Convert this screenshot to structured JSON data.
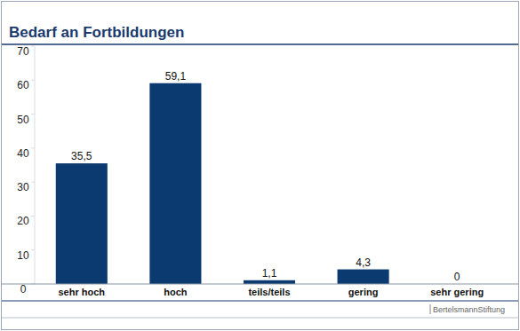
{
  "chart_data": {
    "type": "bar",
    "title": "Bedarf an Fortbildungen",
    "categories": [
      "sehr hoch",
      "hoch",
      "teils/teils",
      "gering",
      "sehr gering"
    ],
    "values": [
      35.5,
      59.1,
      1.1,
      4.3,
      0
    ],
    "value_labels": [
      "35,5",
      "59,1",
      "1,1",
      "4,3",
      "0"
    ],
    "color": "#0b3a70",
    "ylim": [
      0,
      70
    ],
    "yticks": [
      0,
      10,
      20,
      30,
      40,
      50,
      60,
      70
    ],
    "grid": false,
    "data_labels": true,
    "source": "BertelsmannStiftung"
  }
}
